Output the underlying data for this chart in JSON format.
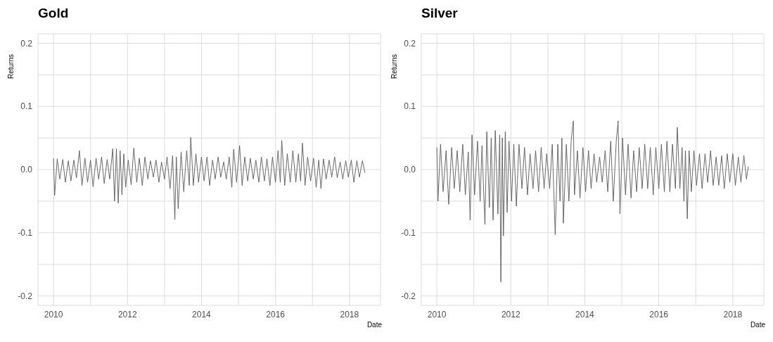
{
  "chart_data": [
    {
      "type": "line",
      "title": "Gold",
      "xlabel": "Date",
      "ylabel": "Returns",
      "grid": true,
      "marker": "none",
      "xlim": [
        2009.58,
        2018.84
      ],
      "ylim": [
        -0.215,
        0.215
      ],
      "xticks": [
        2010,
        {
          "value": 2011,
          "label": null
        },
        2012,
        {
          "value": 2013,
          "label": null
        },
        2014,
        {
          "value": 2015,
          "label": null
        },
        2016,
        {
          "value": 2017,
          "label": null
        },
        2018
      ],
      "yticks": [
        -0.2,
        {
          "value": -0.15,
          "label": null
        },
        -0.1,
        {
          "value": -0.05,
          "label": null
        },
        {
          "value": 0,
          "label": "0.0"
        },
        {
          "value": 0.05,
          "label": null
        },
        0.1,
        {
          "value": 0.15,
          "label": null
        },
        0.2
      ],
      "x": [
        2010.0,
        2010.03,
        2010.1,
        2010.17,
        2010.25,
        2010.32,
        2010.4,
        2010.47,
        2010.55,
        2010.62,
        2010.7,
        2010.77,
        2010.85,
        2010.92,
        2011.0,
        2011.07,
        2011.15,
        2011.22,
        2011.3,
        2011.37,
        2011.45,
        2011.52,
        2011.6,
        2011.65,
        2011.7,
        2011.75,
        2011.8,
        2011.85,
        2011.9,
        2011.95,
        2012.02,
        2012.1,
        2012.17,
        2012.25,
        2012.32,
        2012.4,
        2012.47,
        2012.55,
        2012.62,
        2012.7,
        2012.77,
        2012.85,
        2012.92,
        2013.0,
        2013.07,
        2013.15,
        2013.22,
        2013.28,
        2013.32,
        2013.37,
        2013.45,
        2013.52,
        2013.6,
        2013.67,
        2013.71,
        2013.78,
        2013.85,
        2013.92,
        2014.0,
        2014.07,
        2014.15,
        2014.22,
        2014.3,
        2014.37,
        2014.45,
        2014.52,
        2014.6,
        2014.67,
        2014.75,
        2014.82,
        2014.87,
        2014.95,
        2015.03,
        2015.1,
        2015.17,
        2015.25,
        2015.32,
        2015.4,
        2015.47,
        2015.55,
        2015.62,
        2015.7,
        2015.77,
        2015.85,
        2015.92,
        2016.0,
        2016.07,
        2016.13,
        2016.17,
        2016.25,
        2016.32,
        2016.4,
        2016.47,
        2016.55,
        2016.62,
        2016.68,
        2016.73,
        2016.8,
        2016.87,
        2016.95,
        2017.03,
        2017.1,
        2017.17,
        2017.23,
        2017.3,
        2017.37,
        2017.45,
        2017.52,
        2017.6,
        2017.67,
        2017.75,
        2017.82,
        2017.9,
        2017.97,
        2018.05,
        2018.12,
        2018.2,
        2018.27,
        2018.35,
        2018.42
      ],
      "series": [
        {
          "color": "#595959",
          "values": [
            0.018,
            -0.041,
            0.017,
            -0.015,
            0.016,
            -0.02,
            0.014,
            -0.018,
            0.015,
            -0.013,
            0.03,
            -0.025,
            0.018,
            -0.02,
            0.015,
            -0.027,
            0.018,
            -0.015,
            0.02,
            -0.022,
            0.016,
            -0.015,
            0.033,
            -0.05,
            0.033,
            -0.053,
            0.03,
            -0.04,
            0.025,
            -0.028,
            0.015,
            -0.024,
            0.034,
            -0.02,
            0.018,
            -0.025,
            0.02,
            -0.015,
            0.014,
            -0.012,
            0.015,
            -0.02,
            0.012,
            -0.015,
            0.02,
            -0.03,
            0.022,
            -0.079,
            0.02,
            -0.062,
            0.028,
            -0.035,
            0.03,
            -0.025,
            0.051,
            -0.025,
            0.025,
            -0.02,
            0.02,
            -0.018,
            0.02,
            -0.025,
            0.015,
            -0.015,
            0.02,
            -0.012,
            0.012,
            -0.015,
            0.02,
            -0.028,
            0.032,
            -0.02,
            0.038,
            -0.025,
            0.02,
            -0.018,
            0.018,
            -0.015,
            0.015,
            -0.02,
            0.02,
            -0.018,
            0.017,
            -0.025,
            0.02,
            -0.02,
            0.03,
            -0.02,
            0.046,
            -0.025,
            0.025,
            -0.02,
            0.03,
            -0.02,
            0.025,
            -0.018,
            0.042,
            -0.025,
            0.02,
            -0.018,
            0.018,
            -0.028,
            0.015,
            -0.03,
            0.017,
            -0.015,
            0.015,
            -0.012,
            0.02,
            -0.013,
            0.012,
            -0.015,
            0.014,
            -0.012,
            0.015,
            -0.02,
            0.014,
            -0.012,
            0.014,
            -0.005
          ]
        }
      ]
    },
    {
      "type": "line",
      "title": "Silver",
      "xlabel": "Date",
      "ylabel": "Returns",
      "grid": true,
      "marker": "none",
      "xlim": [
        2009.58,
        2018.84
      ],
      "ylim": [
        -0.215,
        0.215
      ],
      "xticks": [
        2010,
        {
          "value": 2011,
          "label": null
        },
        2012,
        {
          "value": 2013,
          "label": null
        },
        2014,
        {
          "value": 2015,
          "label": null
        },
        2016,
        {
          "value": 2017,
          "label": null
        },
        2018
      ],
      "yticks": [
        -0.2,
        {
          "value": -0.15,
          "label": null
        },
        -0.1,
        {
          "value": -0.05,
          "label": null
        },
        {
          "value": 0,
          "label": "0.0"
        },
        {
          "value": 0.05,
          "label": null
        },
        0.1,
        {
          "value": 0.15,
          "label": null
        },
        0.2
      ],
      "x": [
        2010.0,
        2010.03,
        2010.1,
        2010.17,
        2010.25,
        2010.32,
        2010.4,
        2010.47,
        2010.55,
        2010.62,
        2010.7,
        2010.77,
        2010.85,
        2010.9,
        2010.95,
        2011.02,
        2011.1,
        2011.17,
        2011.22,
        2011.3,
        2011.35,
        2011.42,
        2011.47,
        2011.52,
        2011.58,
        2011.65,
        2011.7,
        2011.73,
        2011.77,
        2011.8,
        2011.85,
        2011.9,
        2011.95,
        2012.02,
        2012.08,
        2012.15,
        2012.22,
        2012.3,
        2012.37,
        2012.45,
        2012.52,
        2012.6,
        2012.67,
        2012.75,
        2012.82,
        2012.9,
        2012.97,
        2013.05,
        2013.12,
        2013.2,
        2013.27,
        2013.33,
        2013.38,
        2013.42,
        2013.5,
        2013.57,
        2013.63,
        2013.69,
        2013.72,
        2013.8,
        2013.87,
        2013.95,
        2014.02,
        2014.1,
        2014.17,
        2014.25,
        2014.32,
        2014.4,
        2014.47,
        2014.55,
        2014.62,
        2014.7,
        2014.77,
        2014.85,
        2014.9,
        2014.95,
        2015.02,
        2015.1,
        2015.17,
        2015.25,
        2015.32,
        2015.4,
        2015.47,
        2015.55,
        2015.62,
        2015.7,
        2015.77,
        2015.85,
        2015.92,
        2016.0,
        2016.07,
        2016.15,
        2016.22,
        2016.3,
        2016.37,
        2016.45,
        2016.5,
        2016.57,
        2016.63,
        2016.68,
        2016.72,
        2016.77,
        2016.82,
        2016.88,
        2016.95,
        2017.02,
        2017.1,
        2017.17,
        2017.25,
        2017.32,
        2017.4,
        2017.47,
        2017.55,
        2017.62,
        2017.7,
        2017.77,
        2017.85,
        2017.92,
        2018.0,
        2018.07,
        2018.15,
        2018.22,
        2018.3,
        2018.37,
        2018.42
      ],
      "series": [
        {
          "color": "#595959",
          "values": [
            0.035,
            -0.05,
            0.04,
            -0.035,
            0.03,
            -0.055,
            0.035,
            -0.03,
            0.03,
            -0.035,
            0.04,
            -0.04,
            0.028,
            -0.08,
            0.055,
            -0.04,
            0.045,
            -0.05,
            0.038,
            -0.087,
            0.06,
            -0.06,
            0.05,
            -0.08,
            0.062,
            -0.07,
            0.055,
            -0.178,
            0.05,
            -0.105,
            0.06,
            -0.068,
            0.045,
            -0.05,
            0.04,
            -0.058,
            0.04,
            -0.03,
            0.035,
            -0.04,
            0.025,
            -0.03,
            0.03,
            -0.035,
            0.035,
            -0.03,
            0.025,
            -0.03,
            0.04,
            -0.103,
            0.04,
            -0.05,
            0.05,
            -0.085,
            0.04,
            -0.05,
            0.045,
            0.077,
            -0.04,
            0.03,
            -0.045,
            0.035,
            -0.035,
            0.03,
            -0.03,
            0.025,
            -0.02,
            0.02,
            -0.02,
            0.03,
            -0.035,
            0.045,
            -0.05,
            0.045,
            0.077,
            -0.07,
            0.05,
            -0.04,
            0.04,
            -0.045,
            0.03,
            -0.035,
            0.035,
            -0.03,
            0.04,
            -0.03,
            0.035,
            -0.04,
            0.035,
            -0.03,
            0.04,
            -0.035,
            0.045,
            -0.035,
            0.04,
            -0.03,
            0.067,
            -0.03,
            0.035,
            -0.05,
            0.03,
            -0.078,
            0.03,
            -0.035,
            0.03,
            -0.025,
            0.025,
            -0.03,
            0.025,
            -0.02,
            0.03,
            -0.025,
            0.02,
            -0.025,
            0.022,
            -0.03,
            0.025,
            -0.02,
            0.025,
            -0.025,
            0.02,
            -0.02,
            0.022,
            -0.015,
            0.005
          ]
        }
      ]
    }
  ]
}
